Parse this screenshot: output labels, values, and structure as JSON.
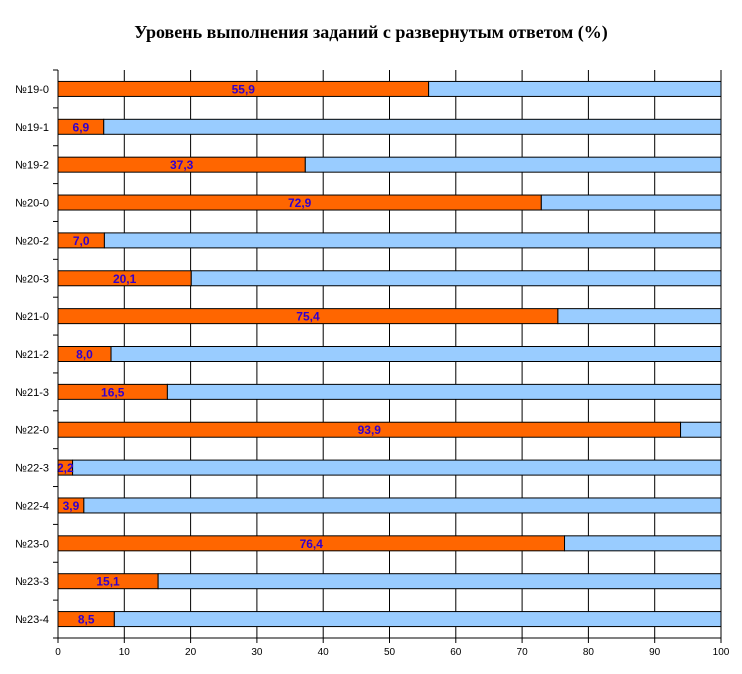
{
  "chart_data": {
    "type": "bar",
    "orientation": "horizontal",
    "stacked": "percent",
    "title": "Уровень выполнения заданий с развернутым ответом  (%)",
    "categories": [
      "№19-0",
      "№19-1",
      "№19-2",
      "№20-0",
      "№20-2",
      "№20-3",
      "№21-0",
      "№21-2",
      "№21-3",
      "№22-0",
      "№22-3",
      "№22-4",
      "№23-0",
      "№23-3",
      "№23-4"
    ],
    "value_labels": [
      "55,9",
      "6,9",
      "37,3",
      "72,9",
      "7,0",
      "20,1",
      "75,4",
      "8,0",
      "16,5",
      "93,9",
      "2,2",
      "3,9",
      "76,4",
      "15,1",
      "8,5"
    ],
    "series": [
      {
        "values": [
          55.9,
          6.9,
          37.3,
          72.9,
          7.0,
          20.1,
          75.4,
          8.0,
          16.5,
          93.9,
          2.2,
          3.9,
          76.4,
          15.1,
          8.5
        ],
        "color": "#FF6600"
      },
      {
        "values": [
          44.1,
          93.1,
          62.7,
          27.1,
          93.0,
          79.9,
          24.6,
          92.0,
          83.5,
          6.1,
          97.8,
          96.1,
          23.6,
          84.9,
          91.5
        ],
        "color": "#99CCFF"
      }
    ],
    "xlim": [
      0,
      100
    ],
    "x_ticks": [
      "0",
      "10",
      "20",
      "30",
      "40",
      "50",
      "60",
      "70",
      "80",
      "90",
      "100"
    ],
    "grid": true,
    "legend": "none",
    "colors": {
      "label_text": "#3300CC",
      "grid": "#000000"
    }
  }
}
